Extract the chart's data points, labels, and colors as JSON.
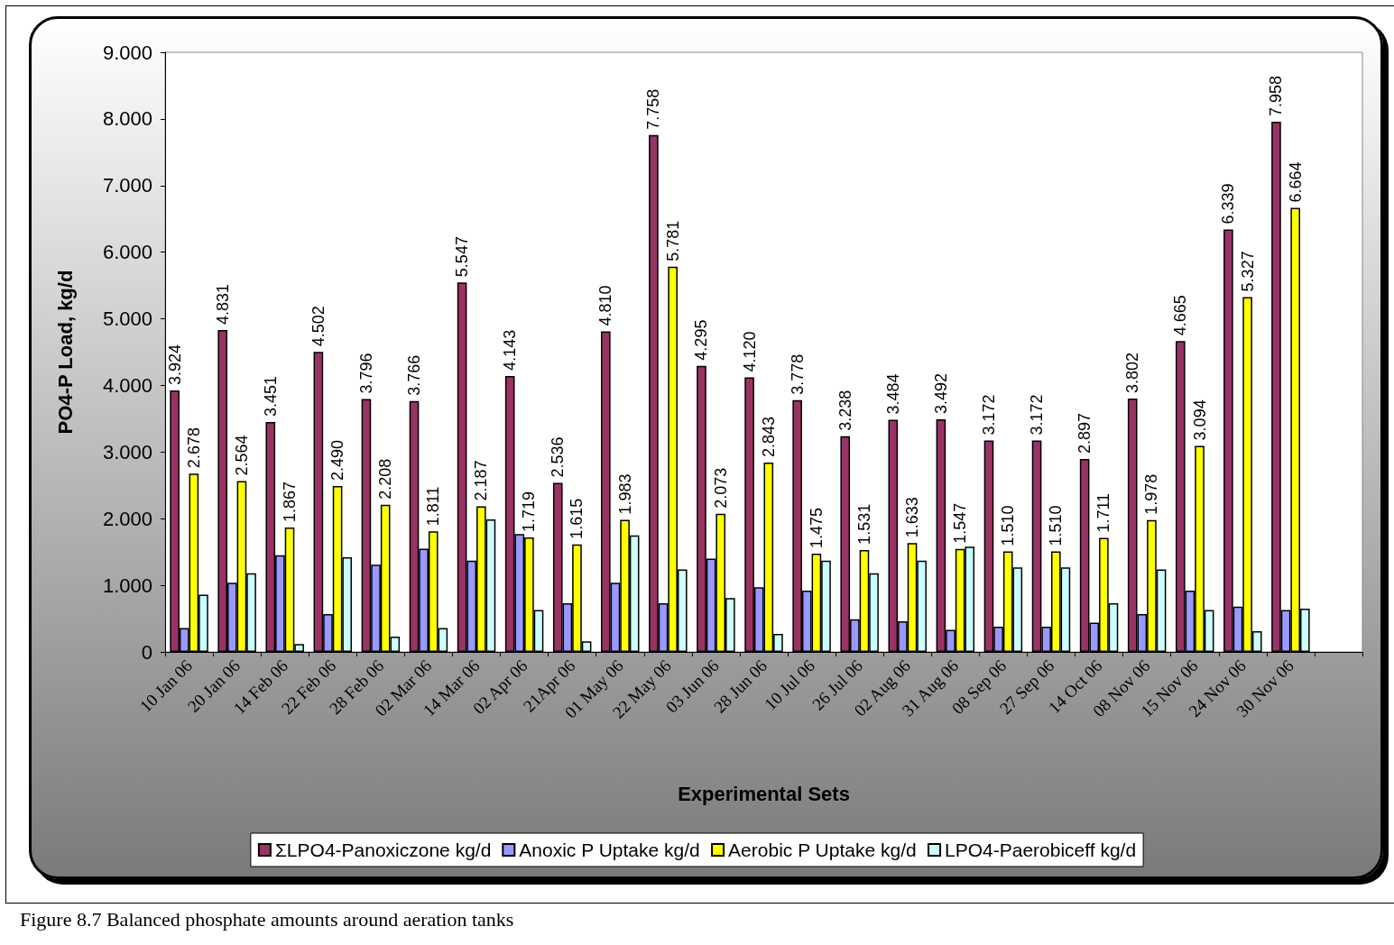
{
  "chart_data": {
    "type": "bar",
    "xlabel": "Experimental Sets",
    "ylabel": "PO4-P Load, kg/d",
    "categories": [
      "10 Jan 06",
      "20 Jan 06",
      "14 Feb 06",
      "22 Feb 06",
      "28 Feb 06",
      "02 Mar 06",
      "14 Mar 06",
      "02 Apr 06",
      "21Apr 06",
      "01 May 06",
      "22 May 06",
      "03 Jun 06",
      "28 Jun 06",
      "10 Jul 06",
      "26 Jul 06",
      "02 Aug 06",
      "31 Aug 06",
      "08 Sep 06",
      "27 Sep 06",
      "14 Oct 06",
      "08 Nov 06",
      "15 Nov 06",
      "24 Nov 06",
      "30 Nov 06",
      null
    ],
    "series": [
      {
        "name": "ΣLPO4-Panoxiczone kg/d",
        "color": "#993366",
        "values": [
          3.924,
          4.831,
          3.451,
          4.502,
          3.796,
          3.766,
          5.547,
          4.143,
          2.536,
          4.81,
          7.758,
          4.295,
          4.12,
          3.778,
          3.238,
          3.484,
          3.492,
          3.172,
          3.172,
          2.897,
          3.802,
          4.665,
          6.339,
          7.958,
          null
        ],
        "value_labels": [
          "3.924",
          "4.831",
          "3.451",
          "4.502",
          "3.796",
          "3.766",
          "5.547",
          "4.143",
          "2.536",
          "4.810",
          "7.758",
          "4.295",
          "4.120",
          "3.778",
          "3.238",
          "3.484",
          "3.492",
          "3.172",
          "3.172",
          "2.897",
          "3.802",
          "4.665",
          "6.339",
          "7.958",
          null
        ]
      },
      {
        "name": "Anoxic P Uptake kg/d",
        "color": "#9999ff",
        "values": [
          0.36,
          1.04,
          1.45,
          0.57,
          1.31,
          1.55,
          1.37,
          1.77,
          0.73,
          1.04,
          0.73,
          1.4,
          0.97,
          0.92,
          0.49,
          0.46,
          0.33,
          0.38,
          0.38,
          0.44,
          0.57,
          0.92,
          0.68,
          0.63,
          null
        ]
      },
      {
        "name": "Aerobic P Uptake kg/d",
        "color": "#ffff00",
        "values": [
          2.678,
          2.564,
          1.867,
          2.49,
          2.208,
          1.811,
          2.187,
          1.719,
          1.615,
          1.983,
          5.781,
          2.073,
          2.843,
          1.475,
          1.531,
          1.633,
          1.547,
          1.51,
          1.51,
          1.711,
          1.978,
          3.094,
          5.327,
          6.664,
          null
        ],
        "value_labels": [
          "2.678",
          "2.564",
          "1.867",
          "2.490",
          "2.208",
          "1.811",
          "2.187",
          "1.719",
          "1.615",
          "1.983",
          "5.781",
          "2.073",
          "2.843",
          "1.475",
          "1.531",
          "1.633",
          "1.547",
          "1.510",
          "1.510",
          "1.711",
          "1.978",
          "3.094",
          "5.327",
          "6.664",
          null
        ]
      },
      {
        "name": "LPO4-Paerobiceff kg/d",
        "color": "#ccffff",
        "values": [
          0.86,
          1.18,
          0.12,
          1.42,
          0.23,
          0.36,
          1.99,
          0.63,
          0.16,
          1.75,
          1.24,
          0.81,
          0.27,
          1.37,
          1.18,
          1.37,
          1.58,
          1.27,
          1.27,
          0.73,
          1.24,
          0.63,
          0.31,
          0.65,
          null
        ]
      }
    ],
    "ylim": [
      0,
      9
    ],
    "yticks": [
      0,
      {
        "value": 1,
        "label": "1.000"
      },
      {
        "value": 2,
        "label": "2.000"
      },
      {
        "value": 3,
        "label": "3.000"
      },
      {
        "value": 4,
        "label": "4.000"
      },
      {
        "value": 5,
        "label": "5.000"
      },
      {
        "value": 6,
        "label": "6.000"
      },
      {
        "value": 7,
        "label": "7.000"
      },
      {
        "value": 8,
        "label": "8.000"
      },
      {
        "value": 9,
        "label": "9.000"
      }
    ],
    "grid": false,
    "legend": "bottom",
    "annotations": [
      "Figure 8.7 Balanced phosphate amounts around aeration tanks"
    ]
  }
}
